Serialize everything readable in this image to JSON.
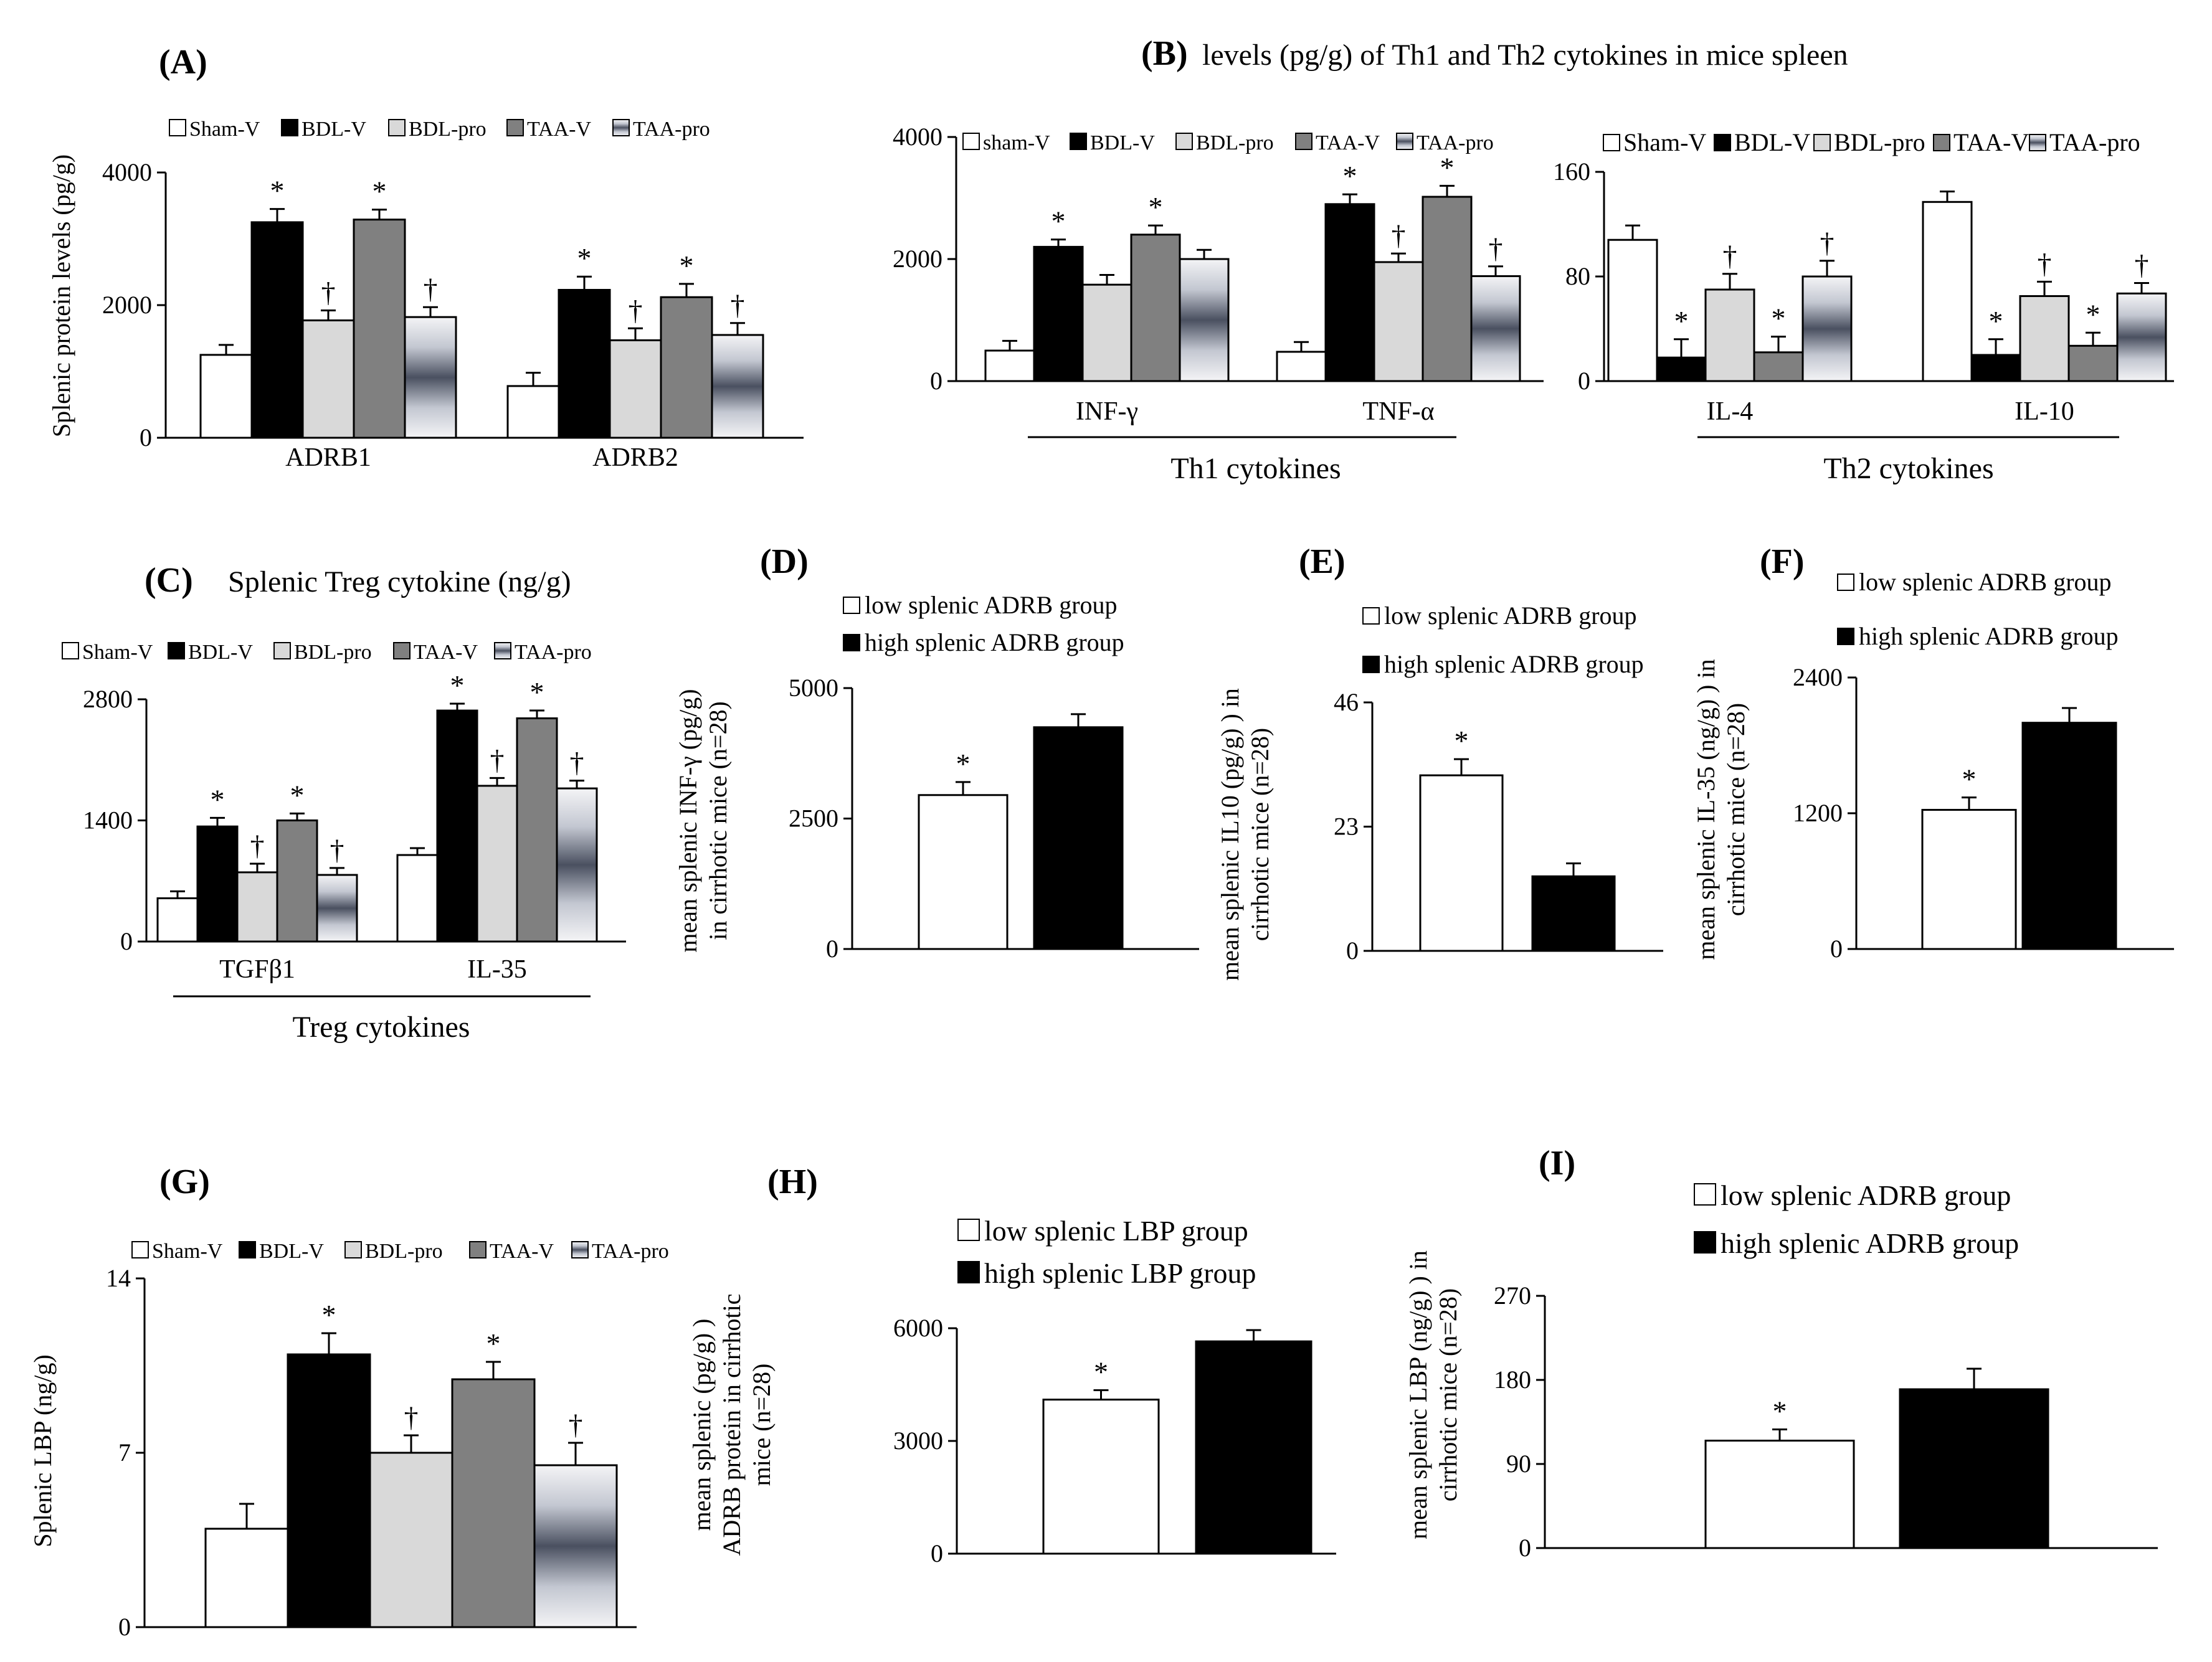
{
  "colors": {
    "sham": "#ffffff",
    "bdl_v": "#000000",
    "bdl_pro": "#d9d9d9",
    "taa_v": "#808080",
    "taa_pro": "gradient"
  },
  "chart_data": [
    {
      "id": "A",
      "panel_label": "(A)",
      "type": "bar",
      "title": "",
      "ylabel": "Splenic protein levels (pg/g)",
      "ylim": [
        0,
        4000
      ],
      "yticks": [
        "0",
        "2000",
        "4000"
      ],
      "categories": [
        "ADRB1",
        "ADRB2"
      ],
      "series": [
        {
          "name": "Sham-V",
          "color_key": "sham",
          "values": [
            1250,
            780
          ],
          "errors": [
            150,
            200
          ],
          "marks": [
            "",
            ""
          ]
        },
        {
          "name": "BDL-V",
          "color_key": "bdl_v",
          "values": [
            3250,
            2230
          ],
          "errors": [
            200,
            200
          ],
          "marks": [
            "*",
            "*"
          ]
        },
        {
          "name": "BDL-pro",
          "color_key": "bdl_pro",
          "values": [
            1770,
            1470
          ],
          "errors": [
            150,
            180
          ],
          "marks": [
            "†",
            "†"
          ]
        },
        {
          "name": "TAA-V",
          "color_key": "taa_v",
          "values": [
            3290,
            2120
          ],
          "errors": [
            150,
            200
          ],
          "marks": [
            "*",
            "*"
          ]
        },
        {
          "name": "TAA-pro",
          "color_key": "taa_pro",
          "values": [
            1820,
            1550
          ],
          "errors": [
            150,
            180
          ],
          "marks": [
            "†",
            "†"
          ]
        }
      ]
    },
    {
      "id": "B1",
      "panel_label": "(B)",
      "type": "bar",
      "title": "levels (pg/g) of Th1 and Th2 cytokines  in mice spleen",
      "group_label": "Th1 cytokines",
      "ylabel": "",
      "ylim": [
        0,
        4000
      ],
      "yticks": [
        "0",
        "2000",
        "4000"
      ],
      "categories": [
        "INF-γ",
        "TNF-α"
      ],
      "series": [
        {
          "name": "sham-V",
          "color_key": "sham",
          "values": [
            500,
            480
          ],
          "errors": [
            160,
            160
          ],
          "marks": [
            "",
            ""
          ]
        },
        {
          "name": "BDL-V",
          "color_key": "bdl_v",
          "values": [
            2200,
            2900
          ],
          "errors": [
            120,
            160
          ],
          "marks": [
            "*",
            "*"
          ]
        },
        {
          "name": "BDL-pro",
          "color_key": "bdl_pro",
          "values": [
            1580,
            1950
          ],
          "errors": [
            160,
            140
          ],
          "marks": [
            "",
            "†"
          ]
        },
        {
          "name": "TAA-V",
          "color_key": "taa_v",
          "values": [
            2400,
            3020
          ],
          "errors": [
            150,
            180
          ],
          "marks": [
            "*",
            "*"
          ]
        },
        {
          "name": "TAA-pro",
          "color_key": "taa_pro",
          "values": [
            2000,
            1720
          ],
          "errors": [
            150,
            160
          ],
          "marks": [
            "",
            "†"
          ]
        }
      ]
    },
    {
      "id": "B2",
      "type": "bar",
      "group_label": "Th2 cytokines",
      "ylabel": "",
      "ylim": [
        0,
        160
      ],
      "yticks": [
        "0",
        "80",
        "160"
      ],
      "categories": [
        "IL-4",
        "IL-10"
      ],
      "series": [
        {
          "name": "Sham-V",
          "color_key": "sham",
          "values": [
            108,
            137
          ],
          "errors": [
            11,
            8
          ],
          "marks": [
            "",
            ""
          ]
        },
        {
          "name": "BDL-V",
          "color_key": "bdl_v",
          "values": [
            18,
            20
          ],
          "errors": [
            14,
            12
          ],
          "marks": [
            "*",
            "*"
          ]
        },
        {
          "name": "BDL-pro",
          "color_key": "bdl_pro",
          "values": [
            70,
            65
          ],
          "errors": [
            12,
            11
          ],
          "marks": [
            "†",
            "†"
          ]
        },
        {
          "name": "TAA-V",
          "color_key": "taa_v",
          "values": [
            22,
            27
          ],
          "errors": [
            12,
            10
          ],
          "marks": [
            "*",
            "*"
          ]
        },
        {
          "name": "TAA-pro",
          "color_key": "taa_pro",
          "values": [
            80,
            67
          ],
          "errors": [
            12,
            8
          ],
          "marks": [
            "†",
            "†"
          ]
        }
      ]
    },
    {
      "id": "C",
      "panel_label": "(C)",
      "type": "bar",
      "title": "Splenic Treg cytokine (ng/g)",
      "group_label": "Treg cytokines",
      "ylabel": "",
      "ylim": [
        0,
        2800
      ],
      "yticks": [
        "0",
        "1400",
        "2800"
      ],
      "categories": [
        "TGFβ1",
        "IL-35"
      ],
      "series": [
        {
          "name": "Sham-V",
          "color_key": "sham",
          "values": [
            500,
            1000
          ],
          "errors": [
            80,
            80
          ],
          "marks": [
            "",
            ""
          ]
        },
        {
          "name": "BDL-V",
          "color_key": "bdl_v",
          "values": [
            1330,
            2670
          ],
          "errors": [
            100,
            80
          ],
          "marks": [
            "*",
            "*"
          ]
        },
        {
          "name": "BDL-pro",
          "color_key": "bdl_pro",
          "values": [
            800,
            1800
          ],
          "errors": [
            100,
            90
          ],
          "marks": [
            "†",
            "†"
          ]
        },
        {
          "name": "TAA-V",
          "color_key": "taa_v",
          "values": [
            1400,
            2580
          ],
          "errors": [
            80,
            90
          ],
          "marks": [
            "*",
            "*"
          ]
        },
        {
          "name": "TAA-pro",
          "color_key": "taa_pro",
          "values": [
            770,
            1770
          ],
          "errors": [
            80,
            90
          ],
          "marks": [
            "†",
            "†"
          ]
        }
      ]
    },
    {
      "id": "D",
      "panel_label": "(D)",
      "type": "bar",
      "ylabel_lines": [
        "mean splenic INF-γ (pg/g)",
        "in cirrhotic mice (n=28)"
      ],
      "ylim": [
        0,
        5000
      ],
      "yticks": [
        "0",
        "2500",
        "5000"
      ],
      "series": [
        {
          "name": "low splenic ADRB group",
          "color_key": "sham",
          "value": 2950,
          "error": 250,
          "mark": "*"
        },
        {
          "name": "high splenic ADRB group",
          "color_key": "bdl_v",
          "value": 4250,
          "error": 250,
          "mark": ""
        }
      ]
    },
    {
      "id": "E",
      "panel_label": "(E)",
      "type": "bar",
      "ylabel_lines": [
        "mean splenic IL10 (pg/g) ) in",
        "cirrhotic mice (n=28)"
      ],
      "ylim": [
        0,
        46
      ],
      "yticks": [
        "0",
        "23",
        "46"
      ],
      "series": [
        {
          "name": "low  splenic ADRB group",
          "color_key": "sham",
          "value": 32.5,
          "error": 3.0,
          "mark": "*"
        },
        {
          "name": "high splenic ADRB group",
          "color_key": "bdl_v",
          "value": 13.8,
          "error": 2.4,
          "mark": ""
        }
      ]
    },
    {
      "id": "F",
      "panel_label": "(F)",
      "type": "bar",
      "ylabel_lines": [
        "mean splenic IL-35 (ng/g) ) in",
        "cirrhotic mice (n=28)"
      ],
      "ylim": [
        0,
        2400
      ],
      "yticks": [
        "0",
        "1200",
        "2400"
      ],
      "series": [
        {
          "name": "low splenic ADRB group",
          "color_key": "sham",
          "value": 1230,
          "error": 110,
          "mark": "*"
        },
        {
          "name": "high splenic ADRB group",
          "color_key": "bdl_v",
          "value": 2000,
          "error": 130,
          "mark": ""
        }
      ]
    },
    {
      "id": "G",
      "panel_label": "(G)",
      "type": "bar",
      "ylabel": "Splenic LBP (ng/g)",
      "ylim": [
        0,
        14
      ],
      "yticks": [
        "0",
        "7",
        "14"
      ],
      "categories": [
        ""
      ],
      "series": [
        {
          "name": "Sham-V",
          "color_key": "sham",
          "values": [
            3.95
          ],
          "errors": [
            1.0
          ],
          "marks": [
            ""
          ]
        },
        {
          "name": "BDL-V",
          "color_key": "bdl_v",
          "values": [
            10.95
          ],
          "errors": [
            0.85
          ],
          "marks": [
            "*"
          ]
        },
        {
          "name": "BDL-pro",
          "color_key": "bdl_pro",
          "values": [
            7.0
          ],
          "errors": [
            0.7
          ],
          "marks": [
            "†"
          ]
        },
        {
          "name": "TAA-V",
          "color_key": "taa_v",
          "values": [
            9.95
          ],
          "errors": [
            0.7
          ],
          "marks": [
            "*"
          ]
        },
        {
          "name": "TAA-pro",
          "color_key": "taa_pro",
          "values": [
            6.5
          ],
          "errors": [
            0.9
          ],
          "marks": [
            "†"
          ]
        }
      ]
    },
    {
      "id": "H",
      "panel_label": "(H)",
      "type": "bar",
      "ylabel_lines": [
        "mean splenic  (pg/g) )",
        "ADRB protein in cirrhotic",
        "mice (n=28)"
      ],
      "ylim": [
        0,
        6000
      ],
      "yticks": [
        "0",
        "3000",
        "6000"
      ],
      "series": [
        {
          "name": "low splenic LBP group",
          "color_key": "sham",
          "value": 4100,
          "error": 250,
          "mark": "*"
        },
        {
          "name": "high splenic LBP group",
          "color_key": "bdl_v",
          "value": 5650,
          "error": 300,
          "mark": ""
        }
      ]
    },
    {
      "id": "I",
      "panel_label": "(I)",
      "type": "bar",
      "ylabel_lines": [
        "mean splenic LBP (ng/g) ) in",
        "cirrhotic mice (n=28)"
      ],
      "ylim": [
        0,
        270
      ],
      "yticks": [
        "0",
        "90",
        "180",
        "270"
      ],
      "series": [
        {
          "name": "low splenic ADRB group",
          "color_key": "sham",
          "value": 115,
          "error": 12,
          "mark": "*"
        },
        {
          "name": "high splenic ADRB group",
          "color_key": "bdl_v",
          "value": 170,
          "error": 22,
          "mark": ""
        }
      ]
    }
  ]
}
